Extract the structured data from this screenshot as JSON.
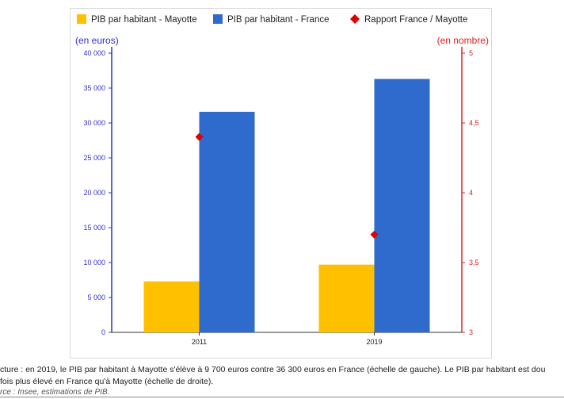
{
  "chart_data": {
    "type": "bar",
    "categories": [
      "2011",
      "2019"
    ],
    "series": [
      {
        "name": "PIB par habitant - Mayotte",
        "values": [
          7300,
          9700
        ],
        "color": "#ffc000",
        "axis": "left"
      },
      {
        "name": "PIB par habitant - France",
        "values": [
          31600,
          36300
        ],
        "color": "#2e6bcd",
        "axis": "left"
      }
    ],
    "line_series": [
      {
        "name": "Rapport France / Mayotte",
        "values": [
          4.4,
          3.7
        ],
        "color": "#e00000",
        "marker": "diamond",
        "axis": "right"
      }
    ],
    "ylabel_left": "(en euros)",
    "ylabel_right": "(en nombre)",
    "ylim_left": [
      0,
      40000
    ],
    "ylim_right": [
      3,
      5
    ],
    "yticks_left": [
      0,
      5000,
      10000,
      15000,
      20000,
      25000,
      30000,
      35000,
      40000
    ],
    "ytick_labels_left": [
      "0",
      "5 000",
      "10 000",
      "15 000",
      "20 000",
      "25 000",
      "30 000",
      "35 000",
      "40 000"
    ],
    "yticks_right": [
      3,
      3.5,
      4,
      4.5,
      5
    ],
    "ytick_labels_right": [
      "3",
      "3,5",
      "4",
      "4,5",
      "5"
    ],
    "legend_position": "top",
    "grid": false,
    "colors": {
      "left_axis": "#2f2fd0",
      "right_axis": "#e02020"
    }
  },
  "caption": {
    "line1": "cture : en 2019, le PIB par habitant à Mayotte s'élève à 9 700 euros contre 36 300 euros en France (échelle de gauche). Le PIB par habitant est dou",
    "line2": "fois plus élevé en France qu'à Mayotte (échelle de droite).",
    "source": "rce : Insee, estimations de PIB."
  }
}
